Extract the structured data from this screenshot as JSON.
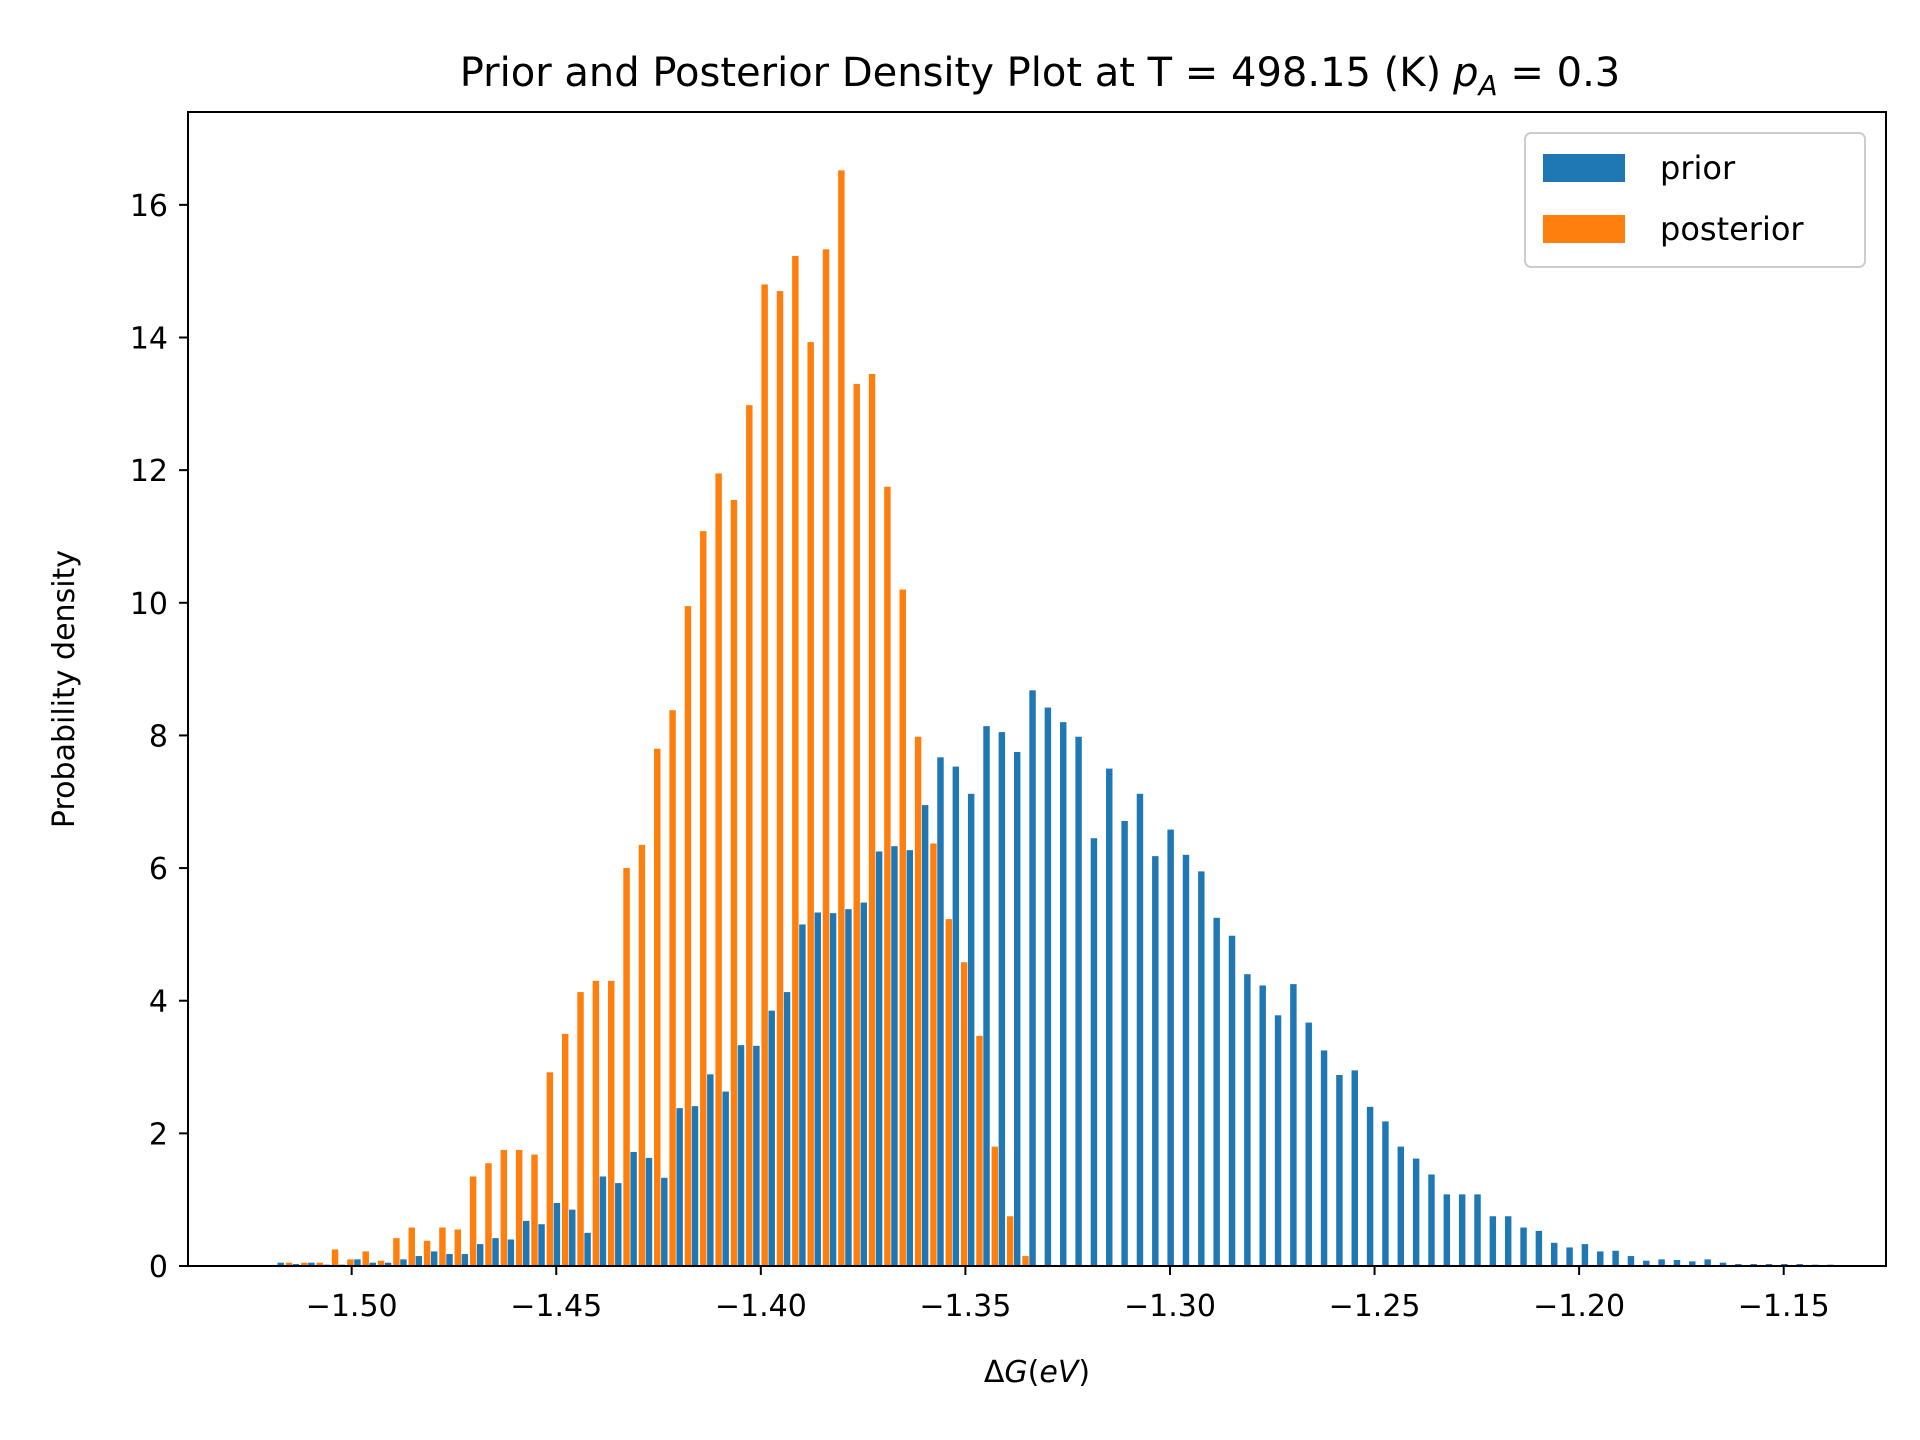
{
  "chart_data": {
    "type": "bar",
    "title": "Prior and Posterior Density Plot at T = 498.15 (K)",
    "title_math": {
      "var": "p",
      "sub": "A",
      "rest": " = 0.3"
    },
    "xlabel": {
      "prefix": "Δ",
      "var": "G",
      "paren": "(",
      "unit": "eV",
      "close": ")"
    },
    "ylabel": "Probability density",
    "xlim": [
      -1.54,
      -1.125
    ],
    "ylim": [
      0,
      17.4
    ],
    "x_ticks": [
      -1.5,
      -1.45,
      -1.4,
      -1.35,
      -1.3,
      -1.25,
      -1.2,
      -1.15
    ],
    "x_tick_labels": [
      "−1.50",
      "−1.45",
      "−1.40",
      "−1.35",
      "−1.30",
      "−1.25",
      "−1.20",
      "−1.15"
    ],
    "y_ticks": [
      0,
      2,
      4,
      6,
      8,
      10,
      12,
      14,
      16
    ],
    "y_tick_labels": [
      "0",
      "2",
      "4",
      "6",
      "8",
      "10",
      "12",
      "14",
      "16"
    ],
    "grid": false,
    "legend_position": "top-right",
    "bin_start": -1.52,
    "bin_width": 0.00375,
    "series": [
      {
        "name": "prior",
        "color": "#1f77b4",
        "values": [
          0.05,
          0.03,
          0.05,
          0.02,
          0.02,
          0.1,
          0.05,
          0.05,
          0.1,
          0.15,
          0.22,
          0.18,
          0.18,
          0.33,
          0.42,
          0.4,
          0.68,
          0.63,
          0.95,
          0.85,
          0.5,
          1.35,
          1.25,
          1.72,
          1.63,
          1.33,
          2.38,
          2.41,
          2.89,
          2.63,
          3.33,
          3.32,
          3.85,
          4.13,
          5.15,
          5.33,
          5.32,
          5.38,
          5.48,
          6.25,
          6.33,
          6.27,
          6.95,
          7.67,
          7.53,
          7.12,
          8.14,
          8.05,
          7.75,
          8.68,
          8.42,
          8.2,
          7.98,
          6.45,
          7.5,
          6.71,
          7.12,
          6.18,
          6.58,
          6.2,
          5.95,
          5.25,
          4.98,
          4.4,
          4.23,
          3.78,
          4.25,
          3.67,
          3.25,
          2.88,
          2.95,
          2.4,
          2.18,
          1.8,
          1.62,
          1.38,
          1.08,
          1.08,
          1.08,
          0.75,
          0.75,
          0.58,
          0.53,
          0.35,
          0.28,
          0.33,
          0.22,
          0.23,
          0.15,
          0.08,
          0.1,
          0.09,
          0.07,
          0.1,
          0.05,
          0.03,
          0.03,
          0.03,
          0.03,
          0.03,
          0.02,
          0.02
        ]
      },
      {
        "name": "posterior",
        "color": "#ff7f0e",
        "values": [
          0.0,
          0.05,
          0.05,
          0.05,
          0.25,
          0.1,
          0.22,
          0.08,
          0.42,
          0.58,
          0.38,
          0.58,
          0.55,
          1.35,
          1.55,
          1.75,
          1.75,
          1.68,
          2.92,
          3.5,
          4.13,
          4.3,
          4.3,
          6.0,
          6.35,
          7.8,
          8.38,
          9.95,
          11.08,
          11.95,
          11.55,
          12.98,
          14.8,
          14.7,
          15.23,
          13.93,
          15.33,
          16.52,
          13.3,
          13.45,
          11.75,
          10.2,
          7.98,
          6.37,
          5.23,
          4.58,
          3.47,
          1.8,
          0.75,
          0.15,
          0.0
        ]
      }
    ]
  }
}
